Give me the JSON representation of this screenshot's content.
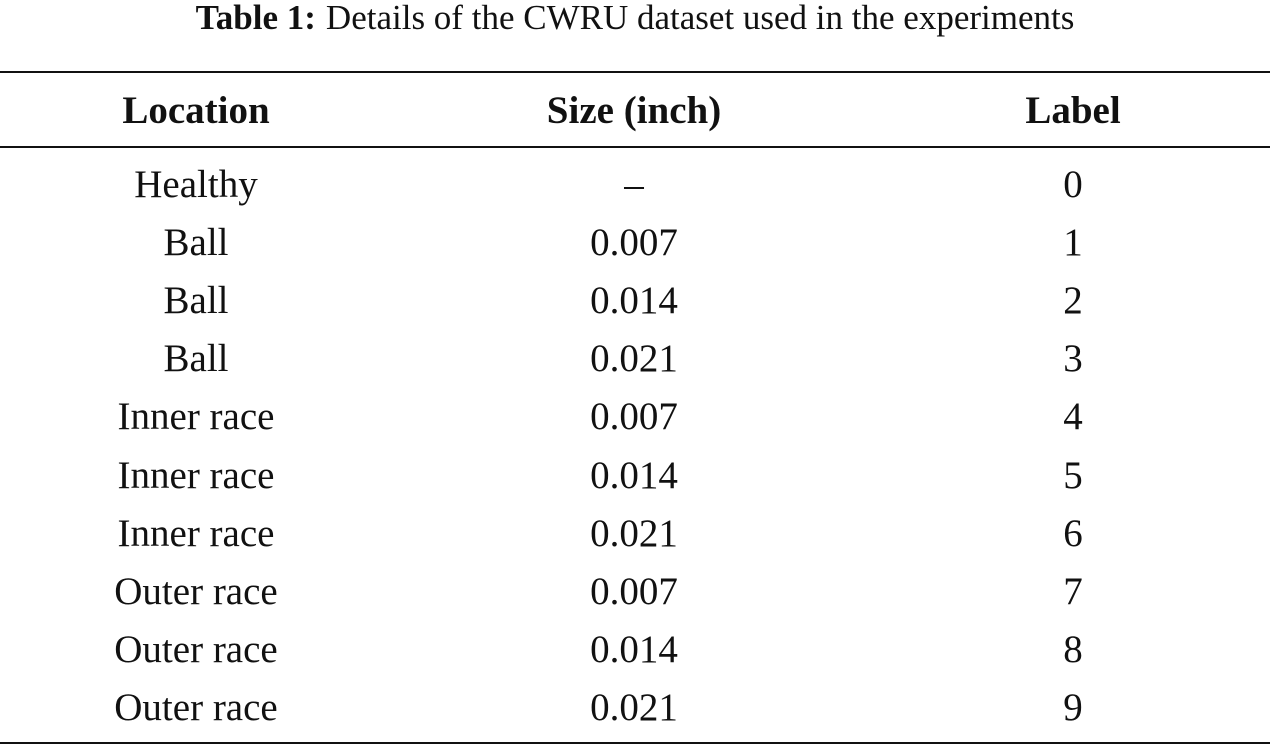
{
  "caption": {
    "label": "Table 1:",
    "text": "Details of the CWRU dataset used in the experiments"
  },
  "table": {
    "columns": [
      "Location",
      "Size (inch)",
      "Label"
    ],
    "rows": [
      [
        "Healthy",
        "–",
        0
      ],
      [
        "Ball",
        0.007,
        1
      ],
      [
        "Ball",
        0.014,
        2
      ],
      [
        "Ball",
        0.021,
        3
      ],
      [
        "Inner race",
        0.007,
        4
      ],
      [
        "Inner race",
        0.014,
        5
      ],
      [
        "Inner race",
        0.021,
        6
      ],
      [
        "Outer race",
        0.007,
        7
      ],
      [
        "Outer race",
        0.014,
        8
      ],
      [
        "Outer race",
        0.021,
        9
      ]
    ]
  }
}
